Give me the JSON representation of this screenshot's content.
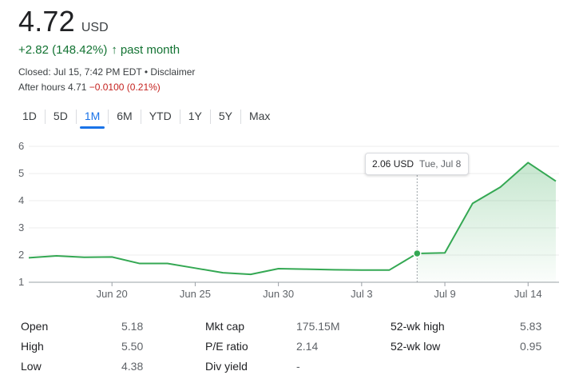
{
  "quote": {
    "price": "4.72",
    "currency": "USD",
    "change": "+2.82 (148.42%)",
    "change_arrow": "↑",
    "change_period": "past month",
    "closed_text": "Closed: Jul 15, 7:42 PM EDT",
    "separator": " • ",
    "disclaimer": "Disclaimer",
    "after_hours_label": "After hours 4.71",
    "after_hours_change": "−0.0100 (0.21%)"
  },
  "tabs": [
    {
      "label": "1D"
    },
    {
      "label": "5D"
    },
    {
      "label": "1M",
      "active": true
    },
    {
      "label": "6M"
    },
    {
      "label": "YTD"
    },
    {
      "label": "1Y"
    },
    {
      "label": "5Y"
    },
    {
      "label": "Max"
    }
  ],
  "tooltip": {
    "value": "2.06 USD",
    "date": "Tue, Jul 8"
  },
  "chart_data": {
    "type": "area",
    "x": [
      "Jun 16",
      "Jun 17",
      "Jun 18",
      "Jun 20",
      "Jun 23",
      "Jun 24",
      "Jun 25",
      "Jun 26",
      "Jun 27",
      "Jun 30",
      "Jul 1",
      "Jul 2",
      "Jul 3",
      "Jul 7",
      "Jul 8",
      "Jul 9",
      "Jul 10",
      "Jul 11",
      "Jul 14",
      "Jul 15"
    ],
    "series": [
      {
        "values": [
          1.9,
          1.97,
          1.92,
          1.93,
          1.69,
          1.69,
          1.52,
          1.35,
          1.29,
          1.5,
          1.48,
          1.46,
          1.45,
          1.45,
          2.06,
          2.08,
          3.9,
          4.5,
          5.4,
          4.72
        ]
      }
    ],
    "x_tick_labels": [
      "Jun 20",
      "Jun 25",
      "Jun 30",
      "Jul 3",
      "Jul 9",
      "Jul 14"
    ],
    "y_tick_labels": [
      "1",
      "2",
      "3",
      "4",
      "5",
      "6"
    ],
    "ylim": [
      1,
      6
    ],
    "grid": true,
    "highlight_index": 14,
    "line_color": "#34a853",
    "fill_color": "#34a853"
  },
  "stats": {
    "open_label": "Open",
    "open_value": "5.18",
    "high_label": "High",
    "high_value": "5.50",
    "low_label": "Low",
    "low_value": "4.38",
    "mktcap_label": "Mkt cap",
    "mktcap_value": "175.15M",
    "pe_label": "P/E ratio",
    "pe_value": "2.14",
    "div_label": "Div yield",
    "div_value": "-",
    "wk52high_label": "52-wk high",
    "wk52high_value": "5.83",
    "wk52low_label": "52-wk low",
    "wk52low_value": "0.95"
  },
  "colors": {
    "positive": "#137333",
    "negative": "#c5221f",
    "accent": "#1a73e8"
  }
}
